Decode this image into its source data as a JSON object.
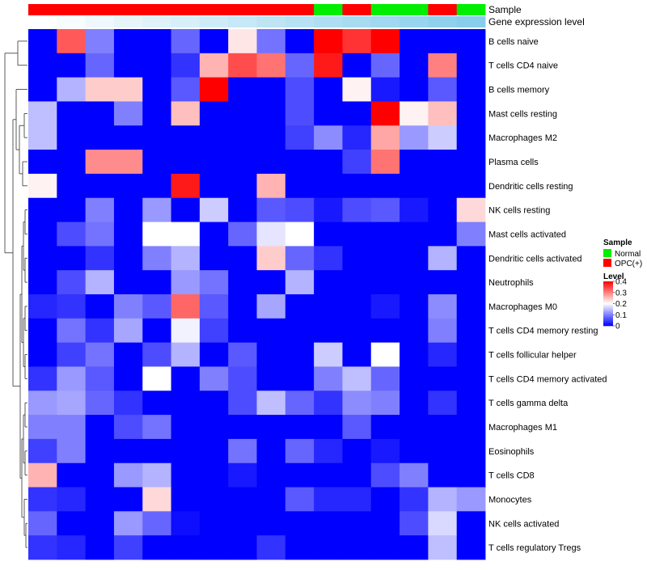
{
  "chart_data": {
    "type": "heatmap",
    "title": "",
    "annotation_tracks": [
      {
        "name": "Sample",
        "values": [
          "OPC(+)",
          "OPC(+)",
          "OPC(+)",
          "OPC(+)",
          "OPC(+)",
          "OPC(+)",
          "OPC(+)",
          "OPC(+)",
          "OPC(+)",
          "OPC(+)",
          "Normal",
          "OPC(+)",
          "Normal",
          "Normal",
          "OPC(+)",
          "Normal"
        ]
      },
      {
        "name": "Gene expression level",
        "values": [
          0.02,
          0.04,
          0.06,
          0.08,
          0.1,
          0.12,
          0.14,
          0.16,
          0.18,
          0.2,
          0.22,
          0.24,
          0.26,
          0.28,
          0.3,
          0.32
        ]
      }
    ],
    "rows": [
      "B cells naive",
      "T cells CD4 naive",
      "B cells memory",
      "Mast cells resting",
      "Macrophages M2",
      "Plasma cells",
      "Dendritic cells resting",
      "NK cells resting",
      "Mast cells activated",
      "Dendritic cells activated",
      "Neutrophils",
      "Macrophages M0",
      "T cells CD4 memory resting",
      "T cells follicular helper",
      "T cells CD4 memory activated",
      "T cells gamma delta",
      "Macrophages M1",
      "Eosinophils",
      "T cells CD8",
      "Monocytes",
      "NK cells activated",
      "T cells regulatory  Tregs"
    ],
    "values": [
      [
        0,
        0.33,
        0.1,
        0,
        0,
        0.08,
        0,
        0.22,
        0.09,
        0,
        0.4,
        0.36,
        0.4,
        0,
        0,
        0
      ],
      [
        0,
        0,
        0.08,
        0,
        0,
        0.04,
        0.26,
        0.34,
        0.31,
        0.08,
        0.38,
        0,
        0.08,
        0,
        0.3,
        0
      ],
      [
        0,
        0.14,
        0.24,
        0.24,
        0,
        0.07,
        0.4,
        0,
        0,
        0.06,
        0,
        0.21,
        0.02,
        0,
        0.07,
        0
      ],
      [
        0.15,
        0,
        0,
        0.1,
        0,
        0.25,
        0,
        0,
        0,
        0.06,
        0,
        0,
        0.4,
        0.21,
        0.25,
        0
      ],
      [
        0.15,
        0,
        0,
        0,
        0,
        0,
        0,
        0,
        0,
        0.05,
        0.11,
        0.03,
        0.27,
        0.12,
        0.16,
        0
      ],
      [
        0,
        0,
        0.29,
        0.29,
        0,
        0,
        0,
        0,
        0,
        0,
        0,
        0.05,
        0.31,
        0,
        0,
        0
      ],
      [
        0.21,
        0,
        0,
        0,
        0,
        0.38,
        0,
        0,
        0.26,
        0,
        0,
        0,
        0,
        0,
        0,
        0
      ],
      [
        0,
        0,
        0.1,
        0,
        0.12,
        0,
        0.16,
        0,
        0.07,
        0.06,
        0.02,
        0.06,
        0.07,
        0.02,
        0,
        0.23
      ],
      [
        0,
        0.06,
        0.09,
        0,
        0.2,
        0.2,
        0,
        0.08,
        0.18,
        0.2,
        0,
        0,
        0,
        0,
        0,
        0.1
      ],
      [
        0,
        0,
        0.04,
        0,
        0.1,
        0.14,
        0,
        0,
        0.24,
        0.08,
        0.04,
        0,
        0,
        0,
        0.14,
        0
      ],
      [
        0,
        0.06,
        0.14,
        0,
        0,
        0.12,
        0.09,
        0,
        0,
        0.14,
        0,
        0,
        0,
        0,
        0,
        0
      ],
      [
        0.03,
        0.04,
        0,
        0.1,
        0.07,
        0.32,
        0.07,
        0,
        0.13,
        0,
        0,
        0,
        0.02,
        0,
        0.11,
        0
      ],
      [
        0,
        0.09,
        0.04,
        0.13,
        0,
        0.19,
        0.05,
        0,
        0,
        0,
        0,
        0,
        0,
        0,
        0.1,
        0
      ],
      [
        0,
        0.05,
        0.09,
        0,
        0.06,
        0.14,
        0,
        0.07,
        0,
        0,
        0.16,
        0,
        0.2,
        0,
        0.03,
        0
      ],
      [
        0.04,
        0.12,
        0.07,
        0,
        0.2,
        0,
        0.1,
        0.06,
        0,
        0,
        0.1,
        0.15,
        0.08,
        0,
        0,
        0
      ],
      [
        0.12,
        0.13,
        0.08,
        0.04,
        0,
        0,
        0,
        0.06,
        0.15,
        0.08,
        0.04,
        0.11,
        0.1,
        0,
        0.04,
        0
      ],
      [
        0.1,
        0.1,
        0,
        0.06,
        0.09,
        0,
        0,
        0,
        0,
        0,
        0,
        0.07,
        0,
        0,
        0,
        0
      ],
      [
        0.05,
        0.1,
        0,
        0,
        0,
        0,
        0,
        0.09,
        0,
        0.08,
        0.03,
        0,
        0.02,
        0,
        0,
        0
      ],
      [
        0.26,
        0,
        0,
        0.12,
        0.14,
        0,
        0,
        0.02,
        0,
        0,
        0,
        0,
        0.06,
        0.1,
        0,
        0
      ],
      [
        0.04,
        0.03,
        0,
        0,
        0.23,
        0,
        0,
        0,
        0,
        0.07,
        0.03,
        0.03,
        0,
        0.04,
        0.14,
        0.12
      ],
      [
        0.08,
        0,
        0,
        0.12,
        0.08,
        0.01,
        0,
        0,
        0,
        0,
        0,
        0,
        0,
        0.06,
        0.17,
        0
      ],
      [
        0.04,
        0.03,
        0,
        0.05,
        0,
        0,
        0,
        0,
        0.04,
        0,
        0,
        0,
        0,
        0,
        0.15,
        0
      ]
    ],
    "row_dendrogram": true,
    "legend": {
      "placement": "right",
      "sample": {
        "title": "Sample",
        "entries": [
          {
            "label": "Normal",
            "color": "#00ee00"
          },
          {
            "label": "OPC(+)",
            "color": "#ff0000"
          }
        ]
      },
      "level": {
        "title": "Level",
        "min": 0,
        "max": 0.4,
        "ticks": [
          0.4,
          0.3,
          0.2,
          0.1,
          0
        ],
        "tick_labels": [
          "0.4",
          "0.3",
          "0.2",
          "0.1",
          "0"
        ]
      }
    },
    "colors": {
      "low": "#0000ff",
      "mid": "#ffffff",
      "high": "#ff0000",
      "normal": "#00ee00",
      "opc": "#ff0000",
      "gel_low": "#ffffff",
      "gel_high": "#87ceeb"
    }
  }
}
